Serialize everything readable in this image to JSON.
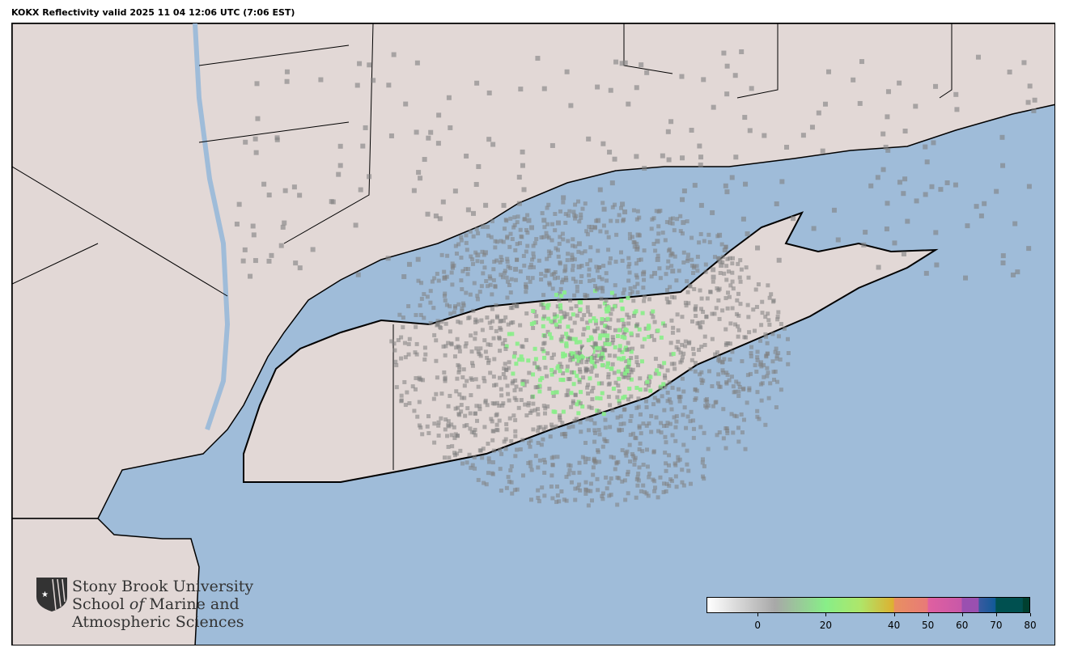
{
  "title": "KOKX Reflectivity valid 2025 11 04 12:06 UTC (7:06 EST)",
  "logo": {
    "line1": "Stony Brook University",
    "line2_a": "School ",
    "line2_b": "of",
    "line2_c": " Marine and",
    "line3": "Atmospheric Sciences"
  },
  "colors": {
    "ocean": "#9fbcd9",
    "land": "#e2d8d6",
    "radar_gray": "#808080",
    "radar_green": "#88ee88"
  },
  "colorbar": {
    "range": [
      -15,
      80
    ],
    "ticks": [
      "0",
      "20",
      "40",
      "50",
      "60",
      "70",
      "80"
    ],
    "stops": [
      {
        "v": -15,
        "c": "#ffffff"
      },
      {
        "v": 5,
        "c": "#a8a8a8"
      },
      {
        "v": 20,
        "c": "#88ee88"
      },
      {
        "v": 30,
        "c": "#aee66a"
      },
      {
        "v": 40,
        "c": "#deb030"
      },
      {
        "v": 40.1,
        "c": "#e89060"
      },
      {
        "v": 50,
        "c": "#e87a78"
      },
      {
        "v": 50.1,
        "c": "#e060a0"
      },
      {
        "v": 60,
        "c": "#c858a8"
      },
      {
        "v": 60.1,
        "c": "#9a50b0"
      },
      {
        "v": 65,
        "c": "#9a50b0"
      },
      {
        "v": 65.1,
        "c": "#3a5aa0"
      },
      {
        "v": 70,
        "c": "#105a98"
      },
      {
        "v": 70.1,
        "c": "#005050"
      },
      {
        "v": 78,
        "c": "#005050"
      },
      {
        "v": 78.1,
        "c": "#004030"
      },
      {
        "v": 80,
        "c": "#004030"
      }
    ]
  }
}
